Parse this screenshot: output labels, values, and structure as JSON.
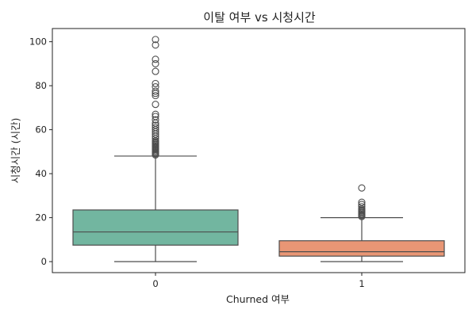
{
  "chart_data": {
    "type": "box",
    "title": "이탈 여부 vs 시청시간",
    "xlabel": "Churned 여부",
    "ylabel": "시청시간 (시간)",
    "ylim": [
      -5,
      106
    ],
    "yticks": [
      0,
      20,
      40,
      60,
      80,
      100
    ],
    "grid": false,
    "categories": [
      "0",
      "1"
    ],
    "boxes": [
      {
        "category": "0",
        "color": "#72b6a0",
        "whisker_low": 0,
        "q1": 7.5,
        "median": 13.5,
        "q3": 23.5,
        "whisker_high": 48,
        "outliers": [
          48.5,
          49,
          49.5,
          50,
          50.5,
          51,
          51.5,
          52,
          52.5,
          53,
          53.5,
          54,
          54.5,
          55,
          56,
          57,
          58,
          59,
          60,
          61,
          62,
          63,
          64.5,
          66,
          67,
          71.5,
          75.5,
          76.5,
          77.5,
          79.5,
          81,
          86.5,
          90,
          92,
          98.5,
          101
        ]
      },
      {
        "category": "1",
        "color": "#e99675",
        "whisker_low": 0,
        "q1": 2.5,
        "median": 4.5,
        "q3": 9.5,
        "whisker_high": 20,
        "outliers": [
          20.5,
          21,
          21.5,
          22,
          22.5,
          23,
          23.5,
          24,
          25,
          26,
          27,
          33.5
        ]
      }
    ]
  }
}
